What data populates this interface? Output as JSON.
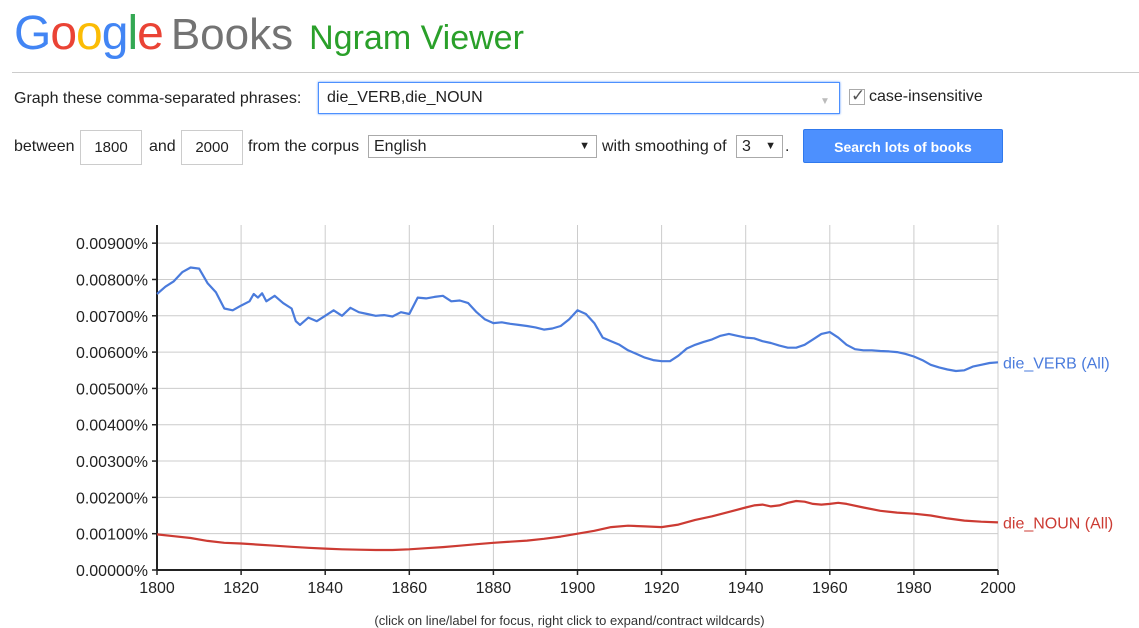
{
  "header": {
    "logo_google": "Google",
    "logo_books": "Books",
    "title": "Ngram Viewer"
  },
  "brand_colors": {
    "g_blue": "#4285f4",
    "o_red": "#ea4335",
    "o_yellow": "#fbbc05",
    "l_green": "#34a853",
    "accent_blue": "#4d90fe"
  },
  "form": {
    "phrases_label": "Graph these comma-separated phrases:",
    "query_value": "die_VERB,die_NOUN",
    "case_insensitive_label": "case-insensitive",
    "case_insensitive_checked": true,
    "between_label": "between",
    "start_year": "1800",
    "and_label": "and",
    "end_year": "2000",
    "corpus_label": "from the corpus",
    "corpus_value": "English",
    "smoothing_label": "with smoothing of",
    "smoothing_value": "3",
    "period": ".",
    "search_button": "Search lots of books"
  },
  "chart_data": {
    "type": "line",
    "xlim": [
      1800,
      2000
    ],
    "ylim": [
      0,
      0.0095
    ],
    "x_ticks": [
      "1800",
      "1820",
      "1840",
      "1860",
      "1880",
      "1900",
      "1920",
      "1940",
      "1960",
      "1980",
      "2000"
    ],
    "y_ticks": [
      "0.00000%",
      "0.00100%",
      "0.00200%",
      "0.00300%",
      "0.00400%",
      "0.00500%",
      "0.00600%",
      "0.00700%",
      "0.00800%",
      "0.00900%"
    ],
    "grid": true,
    "legend": "right, end of lines",
    "series": [
      {
        "name": "die_VERB (All)",
        "color": "#4a7bdc",
        "x": [
          1800,
          1802,
          1804,
          1806,
          1808,
          1810,
          1812,
          1814,
          1816,
          1818,
          1820,
          1822,
          1823,
          1824,
          1825,
          1826,
          1828,
          1830,
          1832,
          1833,
          1834,
          1836,
          1838,
          1840,
          1842,
          1844,
          1846,
          1848,
          1850,
          1852,
          1854,
          1856,
          1858,
          1860,
          1862,
          1864,
          1866,
          1868,
          1870,
          1872,
          1874,
          1876,
          1878,
          1880,
          1882,
          1884,
          1886,
          1888,
          1890,
          1892,
          1894,
          1896,
          1898,
          1900,
          1902,
          1904,
          1906,
          1908,
          1910,
          1912,
          1914,
          1916,
          1918,
          1920,
          1922,
          1924,
          1926,
          1928,
          1930,
          1932,
          1934,
          1936,
          1938,
          1940,
          1942,
          1944,
          1946,
          1948,
          1950,
          1952,
          1954,
          1956,
          1958,
          1960,
          1962,
          1964,
          1966,
          1968,
          1970,
          1972,
          1974,
          1976,
          1978,
          1980,
          1982,
          1984,
          1986,
          1988,
          1990,
          1992,
          1994,
          1996,
          1998,
          2000
        ],
        "values": [
          0.0076,
          0.0078,
          0.00795,
          0.0082,
          0.00833,
          0.0083,
          0.0079,
          0.00765,
          0.0072,
          0.00715,
          0.00728,
          0.0074,
          0.0076,
          0.0075,
          0.00762,
          0.0074,
          0.00755,
          0.00735,
          0.0072,
          0.00685,
          0.00675,
          0.00695,
          0.00685,
          0.007,
          0.00715,
          0.007,
          0.00722,
          0.0071,
          0.00705,
          0.007,
          0.00702,
          0.00698,
          0.0071,
          0.00705,
          0.0075,
          0.00748,
          0.00752,
          0.00755,
          0.0074,
          0.00742,
          0.00735,
          0.0071,
          0.0069,
          0.0068,
          0.00682,
          0.00678,
          0.00675,
          0.00672,
          0.00668,
          0.00662,
          0.00665,
          0.00672,
          0.0069,
          0.00715,
          0.00705,
          0.0068,
          0.0064,
          0.0063,
          0.0062,
          0.00605,
          0.00595,
          0.00585,
          0.00578,
          0.00575,
          0.00575,
          0.0059,
          0.0061,
          0.0062,
          0.00628,
          0.00635,
          0.00645,
          0.0065,
          0.00645,
          0.0064,
          0.00638,
          0.0063,
          0.00625,
          0.00618,
          0.00612,
          0.00612,
          0.0062,
          0.00635,
          0.0065,
          0.00655,
          0.0064,
          0.0062,
          0.00608,
          0.00605,
          0.00605,
          0.00603,
          0.00602,
          0.006,
          0.00595,
          0.00588,
          0.00578,
          0.00565,
          0.00558,
          0.00552,
          0.00548,
          0.0055,
          0.0056,
          0.00565,
          0.0057,
          0.00572
        ]
      },
      {
        "name": "die_NOUN (All)",
        "color": "#cc3b33",
        "x": [
          1800,
          1804,
          1808,
          1812,
          1816,
          1820,
          1824,
          1828,
          1832,
          1836,
          1840,
          1844,
          1848,
          1852,
          1856,
          1860,
          1864,
          1868,
          1872,
          1876,
          1880,
          1884,
          1888,
          1892,
          1896,
          1900,
          1904,
          1908,
          1912,
          1916,
          1920,
          1924,
          1928,
          1932,
          1936,
          1940,
          1942,
          1944,
          1946,
          1948,
          1950,
          1952,
          1954,
          1956,
          1958,
          1960,
          1962,
          1964,
          1968,
          1972,
          1976,
          1980,
          1984,
          1988,
          1992,
          1996,
          2000
        ],
        "values": [
          0.00098,
          0.00093,
          0.00088,
          0.0008,
          0.00075,
          0.00073,
          0.0007,
          0.00067,
          0.00064,
          0.00061,
          0.00059,
          0.00057,
          0.00056,
          0.00055,
          0.00055,
          0.00057,
          0.0006,
          0.00063,
          0.00067,
          0.00071,
          0.00075,
          0.00078,
          0.00081,
          0.00086,
          0.00092,
          0.001,
          0.00108,
          0.00118,
          0.00122,
          0.0012,
          0.00118,
          0.00125,
          0.00138,
          0.00148,
          0.0016,
          0.00172,
          0.00178,
          0.0018,
          0.00175,
          0.00178,
          0.00185,
          0.0019,
          0.00188,
          0.00182,
          0.0018,
          0.00182,
          0.00185,
          0.00182,
          0.00172,
          0.00163,
          0.00158,
          0.00155,
          0.0015,
          0.00142,
          0.00136,
          0.00133,
          0.00131
        ]
      }
    ]
  },
  "footnote": "(click on line/label for focus, right click to expand/contract wildcards)"
}
